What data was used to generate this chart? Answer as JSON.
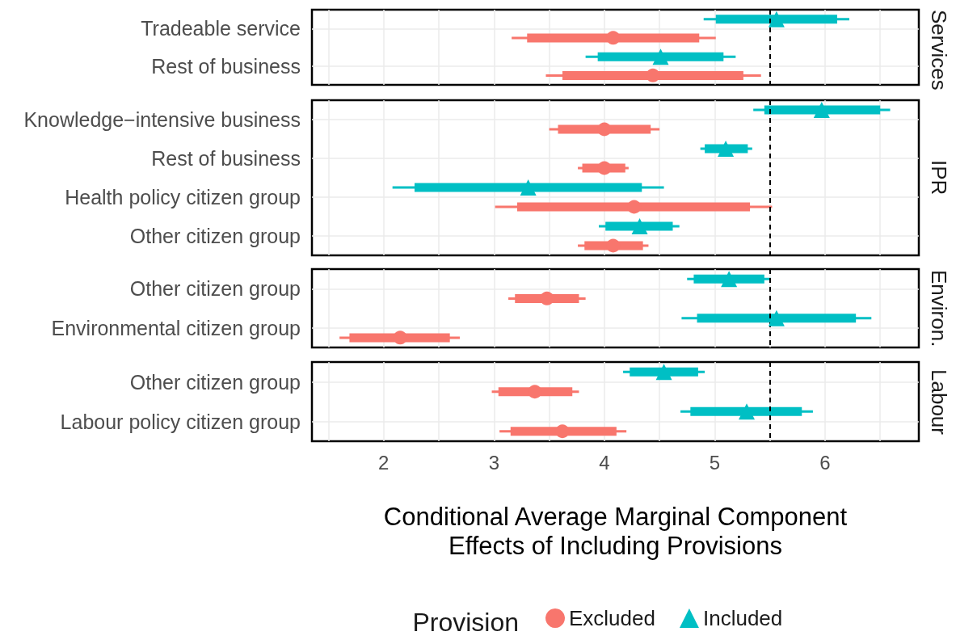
{
  "chart_data": [
    {
      "type": "scatter",
      "orientation": "horizontal",
      "title": "Services",
      "categories": [
        "Tradeable service",
        "Rest of business"
      ],
      "xlim": [
        1.35,
        6.85
      ],
      "xticks": [
        {
          "value": 1.5,
          "label": null
        },
        2,
        {
          "value": 2.5,
          "label": null
        },
        3,
        {
          "value": 3.5,
          "label": null
        },
        4,
        {
          "value": 4.5,
          "label": null
        },
        5,
        {
          "value": 5.5,
          "label": null
        },
        6,
        {
          "value": 6.5,
          "label": null
        }
      ],
      "grid": true,
      "tick_labels": "y",
      "ref_lines": [
        {
          "axis": "x",
          "value": 5.5,
          "color": "#000000",
          "line_style": "dashed"
        }
      ],
      "series": [
        {
          "type": "scatter",
          "marker": "circle",
          "color": "#f8766d",
          "values": [
            4.08,
            4.44
          ],
          "errors": [
            [
              3.16,
              5.01
            ],
            [
              3.47,
              5.42
            ]
          ]
        },
        {
          "type": "bar",
          "color": "#f8766d",
          "base": [
            3.3,
            3.62
          ],
          "values": [
            1.56,
            1.64
          ]
        },
        {
          "type": "scatter",
          "marker": "triangle",
          "color": "#00bfc4",
          "values": [
            5.56,
            4.51
          ],
          "errors": [
            [
              4.9,
              6.22
            ],
            [
              3.83,
              5.19
            ]
          ]
        },
        {
          "type": "bar",
          "color": "#00bfc4",
          "base": [
            5.01,
            3.94
          ],
          "values": [
            1.1,
            1.14
          ]
        }
      ]
    },
    {
      "type": "scatter",
      "orientation": "horizontal",
      "title": "IPR",
      "categories": [
        "Knowledge−intensive business",
        "Rest of business",
        "Health policy citizen group",
        "Other citizen group"
      ],
      "xlim": [
        1.35,
        6.85
      ],
      "xticks": [
        {
          "value": 1.5,
          "label": null
        },
        2,
        {
          "value": 2.5,
          "label": null
        },
        3,
        {
          "value": 3.5,
          "label": null
        },
        4,
        {
          "value": 4.5,
          "label": null
        },
        5,
        {
          "value": 5.5,
          "label": null
        },
        6,
        {
          "value": 6.5,
          "label": null
        }
      ],
      "grid": true,
      "tick_labels": "y",
      "ref_lines": [
        {
          "axis": "x",
          "value": 5.5,
          "color": "#000000",
          "line_style": "dashed"
        }
      ],
      "series": [
        {
          "type": "scatter",
          "marker": "circle",
          "color": "#f8766d",
          "values": [
            4.0,
            4.0,
            4.27,
            4.08
          ],
          "errors": [
            [
              3.5,
              4.5
            ],
            [
              3.76,
              4.22
            ],
            [
              3.01,
              5.52
            ],
            [
              3.76,
              4.4
            ]
          ]
        },
        {
          "type": "bar",
          "color": "#f8766d",
          "base": [
            3.58,
            3.8,
            3.21,
            3.82
          ],
          "values": [
            0.84,
            0.39,
            2.11,
            0.53
          ]
        },
        {
          "type": "scatter",
          "marker": "triangle",
          "color": "#00bfc4",
          "values": [
            5.97,
            5.1,
            3.31,
            4.32
          ],
          "errors": [
            [
              5.35,
              6.59
            ],
            [
              4.87,
              5.34
            ],
            [
              2.08,
              4.54
            ],
            [
              3.95,
              4.68
            ]
          ]
        },
        {
          "type": "bar",
          "color": "#00bfc4",
          "base": [
            5.45,
            4.91,
            2.28,
            4.01
          ],
          "values": [
            1.05,
            0.39,
            2.06,
            0.61
          ]
        }
      ]
    },
    {
      "type": "scatter",
      "orientation": "horizontal",
      "title": "Environ.",
      "categories": [
        "Other citizen group",
        "Environmental citizen group"
      ],
      "xlim": [
        1.35,
        6.85
      ],
      "xticks": [
        {
          "value": 1.5,
          "label": null
        },
        2,
        {
          "value": 2.5,
          "label": null
        },
        3,
        {
          "value": 3.5,
          "label": null
        },
        4,
        {
          "value": 4.5,
          "label": null
        },
        5,
        {
          "value": 5.5,
          "label": null
        },
        6,
        {
          "value": 6.5,
          "label": null
        }
      ],
      "grid": true,
      "tick_labels": "y",
      "ref_lines": [
        {
          "axis": "x",
          "value": 5.5,
          "color": "#000000",
          "line_style": "dashed"
        }
      ],
      "series": [
        {
          "type": "scatter",
          "marker": "circle",
          "color": "#f8766d",
          "values": [
            3.48,
            2.15
          ],
          "errors": [
            [
              3.13,
              3.83
            ],
            [
              1.6,
              2.69
            ]
          ]
        },
        {
          "type": "bar",
          "color": "#f8766d",
          "base": [
            3.19,
            1.69
          ],
          "values": [
            0.58,
            0.91
          ]
        },
        {
          "type": "scatter",
          "marker": "triangle",
          "color": "#00bfc4",
          "values": [
            5.13,
            5.56
          ],
          "errors": [
            [
              4.75,
              5.51
            ],
            [
              4.7,
              6.42
            ]
          ]
        },
        {
          "type": "bar",
          "color": "#00bfc4",
          "base": [
            4.81,
            4.84
          ],
          "values": [
            0.64,
            1.44
          ]
        }
      ]
    },
    {
      "type": "scatter",
      "orientation": "horizontal",
      "title": "Labour",
      "categories": [
        "Other citizen group",
        "Labour policy citizen group"
      ],
      "xlim": [
        1.35,
        6.85
      ],
      "xticks": [
        {
          "value": 1.5,
          "label": null
        },
        2,
        {
          "value": 2.5,
          "label": null
        },
        3,
        {
          "value": 3.5,
          "label": null
        },
        4,
        {
          "value": 4.5,
          "label": null
        },
        5,
        {
          "value": 5.5,
          "label": null
        },
        6,
        {
          "value": 6.5,
          "label": null
        }
      ],
      "grid": true,
      "xlabel": "Conditional Average Marginal Component Effects of Including Provisions",
      "legend": "bottom",
      "legend_title": "Provision",
      "ref_lines": [
        {
          "axis": "x",
          "value": 5.5,
          "color": "#000000",
          "line_style": "dashed"
        }
      ],
      "series": [
        {
          "name": "Excluded",
          "type": "scatter",
          "marker": "circle",
          "color": "#f8766d",
          "values": [
            3.37,
            3.62
          ],
          "errors": [
            [
              2.98,
              3.77
            ],
            [
              3.05,
              4.2
            ]
          ]
        },
        {
          "type": "bar",
          "color": "#f8766d",
          "base": [
            3.04,
            3.15
          ],
          "values": [
            0.67,
            0.96
          ]
        },
        {
          "name": "Included",
          "type": "scatter",
          "marker": "triangle",
          "color": "#00bfc4",
          "values": [
            4.54,
            5.29
          ],
          "errors": [
            [
              4.17,
              4.91
            ],
            [
              4.69,
              5.89
            ]
          ]
        },
        {
          "type": "bar",
          "color": "#00bfc4",
          "base": [
            4.23,
            4.78
          ],
          "values": [
            0.62,
            1.01
          ]
        }
      ]
    }
  ]
}
